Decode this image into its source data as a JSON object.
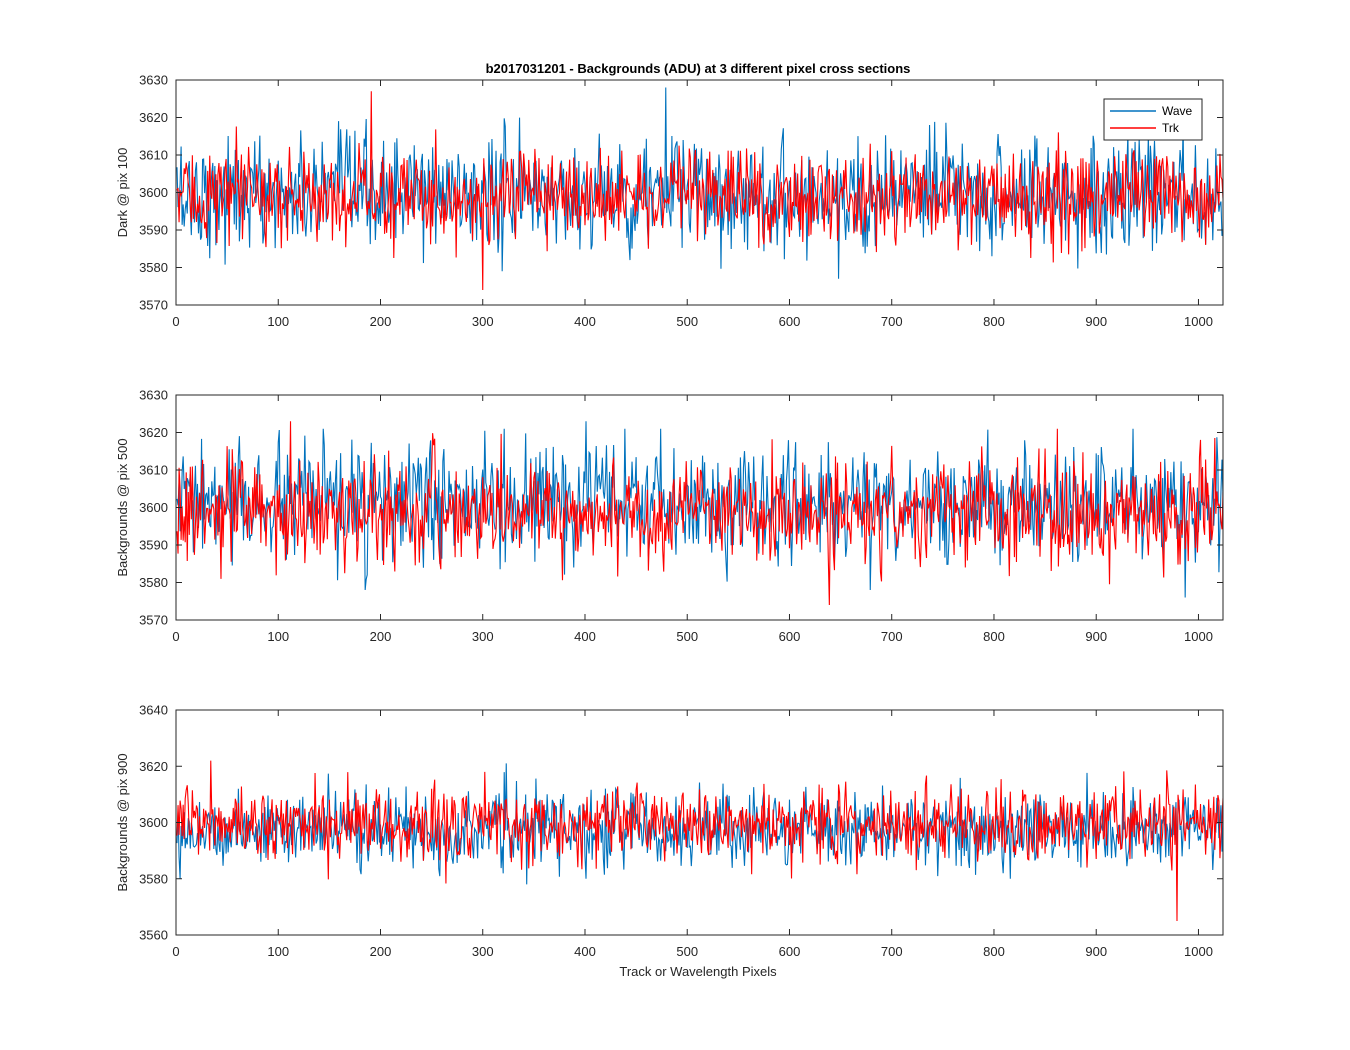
{
  "chart_data": {
    "title": "b2017031201 - Backgrounds (ADU) at 3 different pixel cross sections",
    "xlabel": "Track or Wavelength Pixels",
    "legend": {
      "placement": "top-right",
      "entries": [
        "Wave",
        "Trk"
      ]
    },
    "colors": {
      "Wave": "#0072BD",
      "Trk": "#FF0000"
    },
    "panels": [
      {
        "type": "line",
        "ylabel": "Dark @ pix 100",
        "xlim": [
          0,
          1024
        ],
        "ylim": [
          3570,
          3630
        ],
        "xticks": [
          0,
          100,
          200,
          300,
          400,
          500,
          600,
          700,
          800,
          900,
          1000
        ],
        "yticks": [
          3570,
          3580,
          3590,
          3600,
          3610,
          3620,
          3630
        ],
        "series": [
          {
            "name": "Wave",
            "mean": 3599.5,
            "sd": 7.5,
            "min": 3577,
            "max": 3628
          },
          {
            "name": "Trk",
            "mean": 3599,
            "sd": 6,
            "min": 3574,
            "max": 3627
          }
        ]
      },
      {
        "type": "line",
        "ylabel": "Backgrounds @ pix 500",
        "xlim": [
          0,
          1024
        ],
        "ylim": [
          3570,
          3630
        ],
        "xticks": [
          0,
          100,
          200,
          300,
          400,
          500,
          600,
          700,
          800,
          900,
          1000
        ],
        "yticks": [
          3570,
          3580,
          3590,
          3600,
          3610,
          3620,
          3630
        ],
        "series": [
          {
            "name": "Wave",
            "mean": 3601,
            "sd": 7.5,
            "min": 3576,
            "max": 3623
          },
          {
            "name": "Trk",
            "mean": 3598.5,
            "sd": 6.5,
            "min": 3574,
            "max": 3623
          }
        ]
      },
      {
        "type": "line",
        "ylabel": "Backgrounds @ pix 900",
        "xlim": [
          0,
          1024
        ],
        "ylim": [
          3560,
          3640
        ],
        "xticks": [
          0,
          100,
          200,
          300,
          400,
          500,
          600,
          700,
          800,
          900,
          1000
        ],
        "yticks": [
          3560,
          3580,
          3600,
          3620,
          3640
        ],
        "series": [
          {
            "name": "Wave",
            "mean": 3597.5,
            "sd": 6.5,
            "min": 3578,
            "max": 3621
          },
          {
            "name": "Trk",
            "mean": 3599.5,
            "sd": 6.5,
            "min": 3565,
            "max": 3622
          }
        ]
      }
    ]
  }
}
